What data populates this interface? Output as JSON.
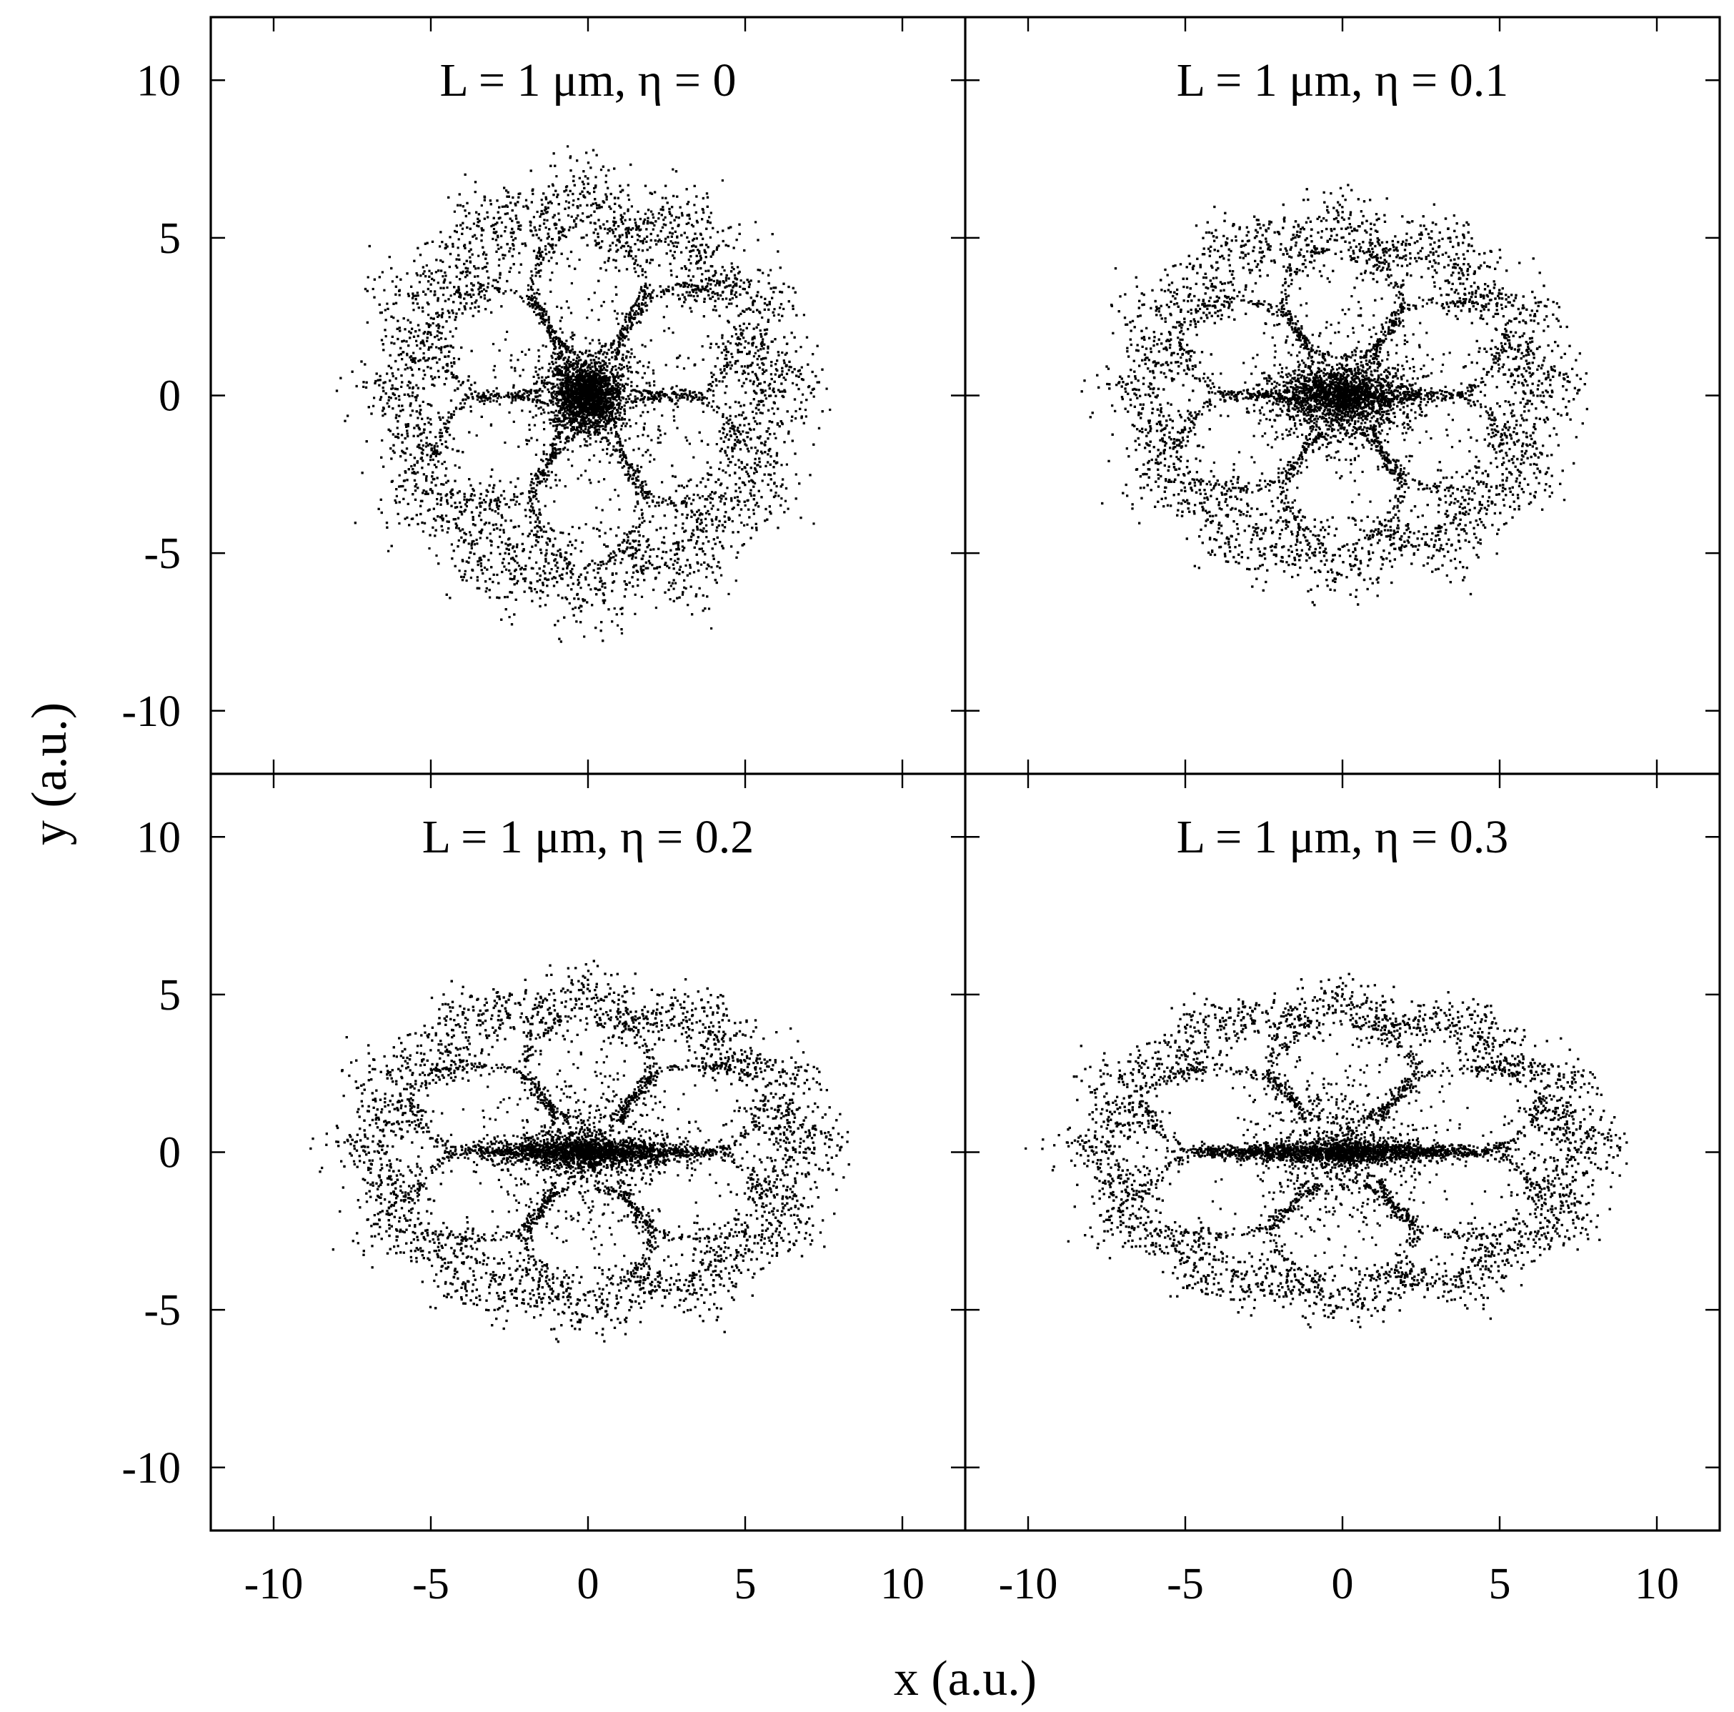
{
  "chart_data": [
    {
      "type": "scatter",
      "title": "L = 1 μm, η = 0",
      "eta": 0,
      "shape": {
        "rx": 5.7,
        "ry": 5.7,
        "ring_width": 0.85,
        "core_rx": 0.55,
        "core_ry": 0.55,
        "waist": 0,
        "bulge": 0.4
      },
      "xlim": [
        -12,
        12
      ],
      "ylim": [
        -12,
        12
      ]
    },
    {
      "type": "scatter",
      "title": "L = 1 μm, η = 0.1",
      "eta": 0.1,
      "shape": {
        "rx": 6.1,
        "ry": 5.0,
        "ring_width": 0.8,
        "core_rx": 1.1,
        "core_ry": 0.45,
        "waist": 0.08,
        "bulge": 0.4
      },
      "xlim": [
        -12,
        12
      ],
      "ylim": [
        -12,
        12
      ]
    },
    {
      "type": "scatter",
      "title": "L = 1 μm, η = 0.2",
      "eta": 0.2,
      "shape": {
        "rx": 6.6,
        "ry": 4.6,
        "ring_width": 0.8,
        "core_rx": 1.6,
        "core_ry": 0.22,
        "waist": 0.12,
        "bulge": 0.4
      },
      "xlim": [
        -12,
        12
      ],
      "ylim": [
        -12,
        12
      ]
    },
    {
      "type": "scatter",
      "title": "L = 1 μm, η = 0.3",
      "eta": 0.3,
      "shape": {
        "rx": 7.4,
        "ry": 4.4,
        "ring_width": 0.75,
        "core_rx": 2.1,
        "core_ry": 0.15,
        "waist": 0.22,
        "bulge": 0.4
      },
      "xlim": [
        -12,
        12
      ],
      "ylim": [
        -12,
        12
      ]
    }
  ],
  "axes": {
    "xlabel": "x (a.u.)",
    "ylabel": "y (a.u.)",
    "xticks": [
      -10,
      -5,
      0,
      5,
      10
    ],
    "yticks": [
      10,
      5,
      0,
      -5,
      -10
    ],
    "xtick_labels": [
      "-10",
      "-5",
      "0",
      "5",
      "10"
    ],
    "ytick_labels": [
      "10",
      "5",
      "0",
      "-5",
      "-10"
    ]
  },
  "colors": {
    "points": "#000000",
    "frame": "#000000",
    "background": "#ffffff"
  }
}
